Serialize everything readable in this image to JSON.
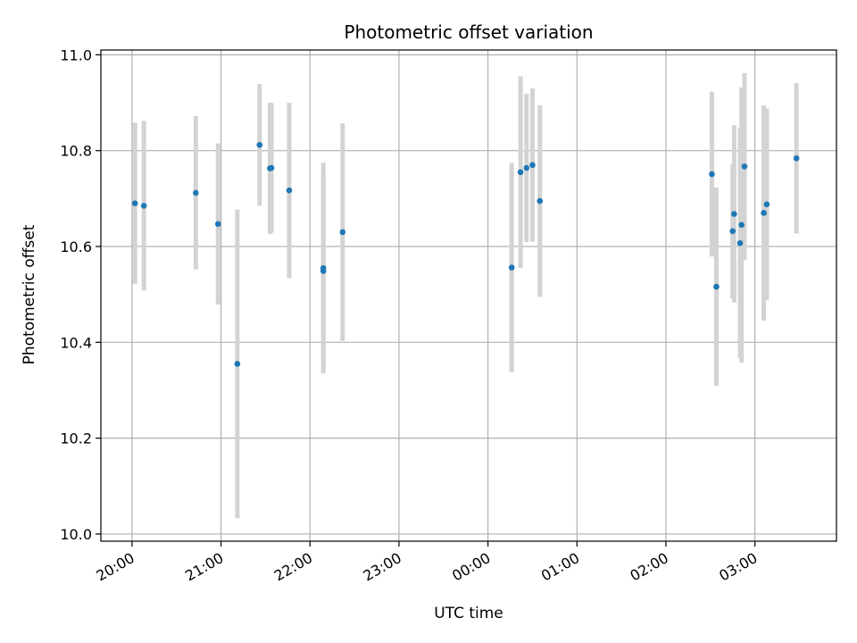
{
  "chart_data": {
    "type": "scatter",
    "title": "Photometric offset variation",
    "xlabel": "UTC time",
    "ylabel": "Photometric offset",
    "grid": true,
    "xlim": [
      "19:39",
      "03:55"
    ],
    "ylim": [
      9.985,
      11.01
    ],
    "x_ticks": [
      "20:00",
      "21:00",
      "22:00",
      "23:00",
      "00:00",
      "01:00",
      "02:00",
      "03:00"
    ],
    "y_ticks": [
      10.0,
      10.2,
      10.4,
      10.6,
      10.8,
      11.0
    ],
    "colors": {
      "point": "#1f77b4",
      "errorbar": "#d3d3d3",
      "grid": "#b0b0b0"
    },
    "points": [
      {
        "x": "20:02",
        "y": 10.69,
        "err": 0.168
      },
      {
        "x": "20:08",
        "y": 10.685,
        "err": 0.177
      },
      {
        "x": "20:43",
        "y": 10.712,
        "err": 0.16
      },
      {
        "x": "20:58",
        "y": 10.647,
        "err": 0.168
      },
      {
        "x": "21:11",
        "y": 10.355,
        "err": 0.322
      },
      {
        "x": "21:26",
        "y": 10.812,
        "err": 0.127
      },
      {
        "x": "21:33",
        "y": 10.763,
        "err": 0.137
      },
      {
        "x": "21:34",
        "y": 10.764,
        "err": 0.135
      },
      {
        "x": "21:46",
        "y": 10.717,
        "err": 0.183
      },
      {
        "x": "22:09",
        "y": 10.555,
        "err": 0.22
      },
      {
        "x": "22:09",
        "y": 10.549,
        "err": 0.2
      },
      {
        "x": "22:22",
        "y": 10.63,
        "err": 0.227
      },
      {
        "x": "00:16",
        "y": 10.556,
        "err": 0.218
      },
      {
        "x": "00:22",
        "y": 10.755,
        "err": 0.2
      },
      {
        "x": "00:26",
        "y": 10.764,
        "err": 0.155
      },
      {
        "x": "00:30",
        "y": 10.77,
        "err": 0.16
      },
      {
        "x": "00:35",
        "y": 10.695,
        "err": 0.2
      },
      {
        "x": "02:31",
        "y": 10.751,
        "err": 0.172
      },
      {
        "x": "02:34",
        "y": 10.516,
        "err": 0.207
      },
      {
        "x": "02:45",
        "y": 10.632,
        "err": 0.14
      },
      {
        "x": "02:46",
        "y": 10.668,
        "err": 0.185
      },
      {
        "x": "02:50",
        "y": 10.607,
        "err": 0.24
      },
      {
        "x": "02:51",
        "y": 10.645,
        "err": 0.287
      },
      {
        "x": "02:53",
        "y": 10.767,
        "err": 0.195
      },
      {
        "x": "03:06",
        "y": 10.67,
        "err": 0.225
      },
      {
        "x": "03:08",
        "y": 10.688,
        "err": 0.2
      },
      {
        "x": "03:28",
        "y": 10.784,
        "err": 0.157
      }
    ]
  }
}
